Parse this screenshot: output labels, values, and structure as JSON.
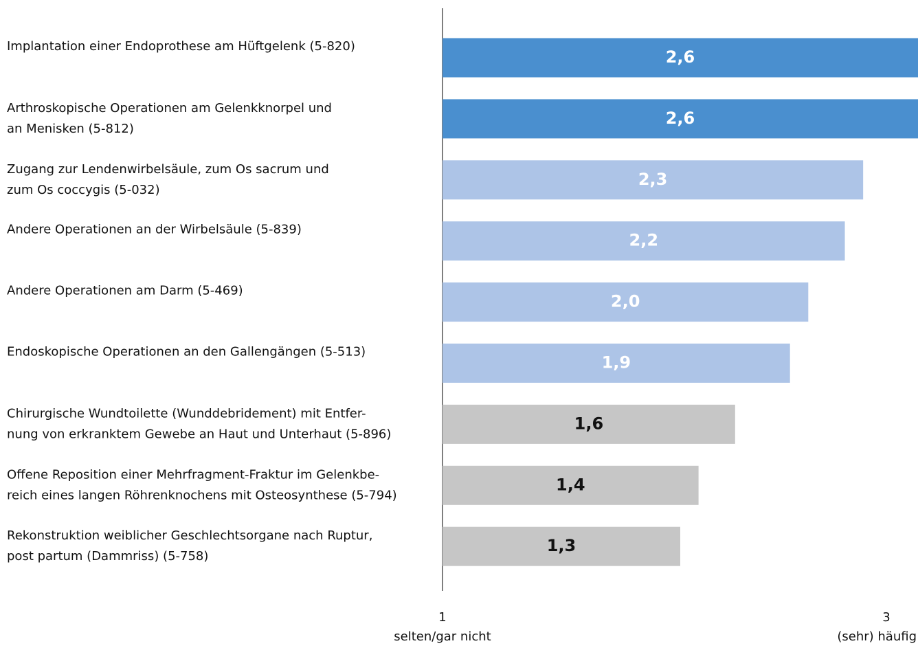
{
  "chart_data": {
    "type": "barh",
    "categories": [
      "Implantation einer Endoprothese am Hüftgelenk (5-820)",
      "Arthroskopische Operationen am Gelenkknorpel und\nan Menisken (5-812)",
      "Zugang zur Lendenwirbelsäule, zum Os sacrum und\nzum Os coccygis (5-032)",
      "Andere Operationen an der Wirbelsäule (5-839)",
      "Andere Operationen am Darm (5-469)",
      "Endoskopische Operationen an den Gallengängen (5-513)",
      "Chirurgische Wundtoilette (Wunddebridement) mit Entfer-\nnung von erkranktem Gewebe an Haut und Unterhaut (5-896)",
      "Offene Reposition einer Mehrfragment-Fraktur im Gelenkbe-\nreich eines langen Röhrenknochens mit Osteosynthese (5-794)",
      "Rekonstruktion weiblicher Geschlechtsorgane nach Ruptur,\npost partum (Dammriss) (5-758)"
    ],
    "values": [
      2.6,
      2.6,
      2.3,
      2.2,
      2.0,
      1.9,
      1.6,
      1.4,
      1.3
    ],
    "value_labels": [
      "2,6",
      "2,6",
      "2,3",
      "2,2",
      "2,0",
      "1,9",
      "1,6",
      "1,4",
      "1,3"
    ],
    "colors": [
      "#4a8fcf",
      "#4a8fcf",
      "#adc4e7",
      "#adc4e7",
      "#adc4e7",
      "#adc4e7",
      "#c6c6c6",
      "#c6c6c6",
      "#c6c6c6"
    ],
    "label_colors": [
      "#ffffff",
      "#ffffff",
      "#ffffff",
      "#ffffff",
      "#ffffff",
      "#ffffff",
      "#111111",
      "#111111",
      "#111111"
    ],
    "xlim": [
      0,
      2.6
    ],
    "axis_ends": {
      "left": "1",
      "left_caption": "selten/gar nicht",
      "right": "3",
      "right_caption": "(sehr) häufig"
    }
  }
}
